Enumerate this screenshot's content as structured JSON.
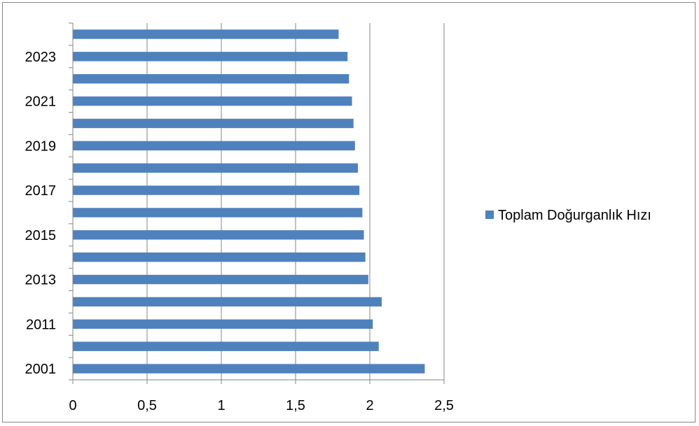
{
  "chart_data": {
    "type": "bar",
    "orientation": "horizontal",
    "title": "",
    "xlabel": "",
    "ylabel": "",
    "categories": [
      "2001",
      "",
      "2011",
      "",
      "2013",
      "",
      "2015",
      "",
      "2017",
      "",
      "2019",
      "",
      "2021",
      "",
      "2023",
      ""
    ],
    "series": [
      {
        "name": "Toplam Doğurganlık Hızı",
        "values": [
          2.37,
          2.06,
          2.02,
          2.08,
          1.99,
          1.97,
          1.96,
          1.95,
          1.93,
          1.92,
          1.9,
          1.89,
          1.88,
          1.86,
          1.85,
          1.79
        ],
        "color": "#4f81bd"
      }
    ],
    "xlim": [
      0,
      2.5
    ],
    "x_ticks": [
      "0",
      "0,5",
      "1",
      "1,5",
      "2",
      "2,5"
    ],
    "grid": {
      "vertical": true,
      "horizontal": false,
      "color": "#868686"
    },
    "legend": {
      "position": "right"
    }
  }
}
